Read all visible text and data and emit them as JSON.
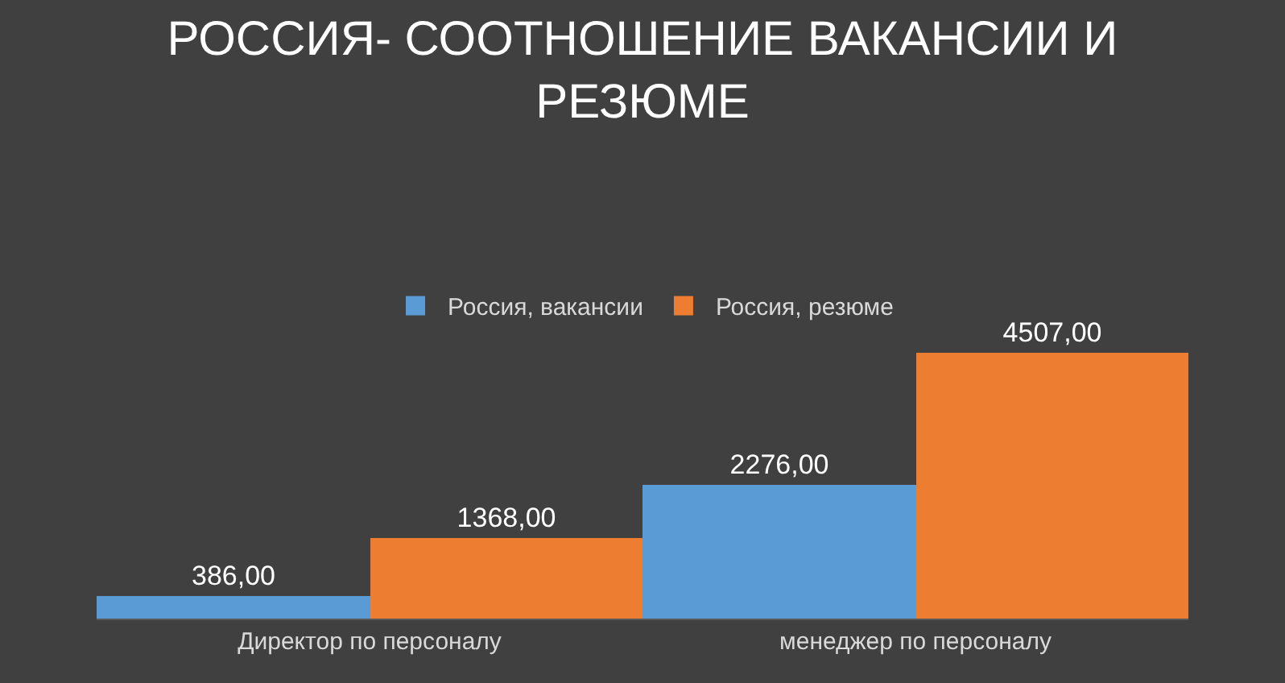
{
  "chart_data": {
    "type": "bar",
    "title": "РОССИЯ- СООТНОШЕНИЕ ВАКАНСИИ И РЕЗЮМЕ",
    "categories": [
      "Директор по персоналу",
      "менеджер по персоналу"
    ],
    "series": [
      {
        "name": "Россия, вакансии",
        "color": "#5b9bd5",
        "values": [
          386,
          2276
        ],
        "value_labels": [
          "386,00",
          "2276,00"
        ]
      },
      {
        "name": "Россия, резюме",
        "color": "#ed7d31",
        "values": [
          1368,
          4507
        ],
        "value_labels": [
          "1368,00",
          "4507,00"
        ]
      }
    ],
    "legend": "top",
    "grid": false
  }
}
